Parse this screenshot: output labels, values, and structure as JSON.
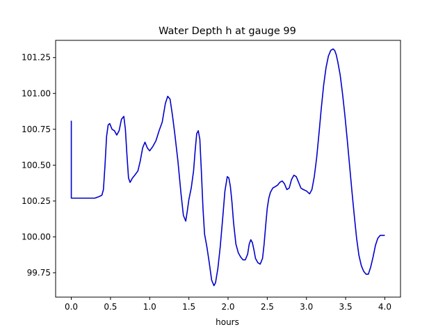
{
  "chart_data": {
    "type": "line",
    "title": "Water Depth h at gauge 99",
    "xlabel": "hours",
    "ylabel": "",
    "xlim": [
      -0.2,
      4.2
    ],
    "ylim": [
      99.58,
      101.37
    ],
    "xticks": [
      0.0,
      0.5,
      1.0,
      1.5,
      2.0,
      2.5,
      3.0,
      3.5,
      4.0
    ],
    "xtick_labels": [
      "0.0",
      "0.5",
      "1.0",
      "1.5",
      "2.0",
      "2.5",
      "3.0",
      "3.5",
      "4.0"
    ],
    "yticks": [
      99.75,
      100.0,
      100.25,
      100.5,
      100.75,
      101.0,
      101.25
    ],
    "ytick_labels": [
      "99.75",
      "100.00",
      "100.25",
      "100.50",
      "100.75",
      "101.00",
      "101.25"
    ],
    "grid": false,
    "series": [
      {
        "color": "#0000cc",
        "x": [
          0.0,
          0.0,
          0.01,
          0.1,
          0.2,
          0.3,
          0.35,
          0.39,
          0.41,
          0.43,
          0.45,
          0.47,
          0.49,
          0.52,
          0.55,
          0.58,
          0.61,
          0.64,
          0.67,
          0.69,
          0.71,
          0.73,
          0.75,
          0.78,
          0.81,
          0.85,
          0.88,
          0.91,
          0.94,
          0.97,
          1.0,
          1.04,
          1.08,
          1.12,
          1.16,
          1.2,
          1.23,
          1.26,
          1.29,
          1.32,
          1.36,
          1.4,
          1.43,
          1.46,
          1.48,
          1.5,
          1.53,
          1.56,
          1.58,
          1.6,
          1.62,
          1.64,
          1.66,
          1.68,
          1.7,
          1.73,
          1.76,
          1.79,
          1.82,
          1.84,
          1.87,
          1.9,
          1.93,
          1.96,
          1.99,
          2.01,
          2.03,
          2.05,
          2.07,
          2.1,
          2.13,
          2.16,
          2.19,
          2.22,
          2.25,
          2.27,
          2.29,
          2.31,
          2.33,
          2.35,
          2.38,
          2.41,
          2.44,
          2.46,
          2.48,
          2.5,
          2.52,
          2.54,
          2.57,
          2.6,
          2.63,
          2.66,
          2.69,
          2.72,
          2.75,
          2.78,
          2.81,
          2.84,
          2.87,
          2.9,
          2.93,
          2.96,
          3.0,
          3.04,
          3.07,
          3.1,
          3.13,
          3.16,
          3.19,
          3.22,
          3.25,
          3.28,
          3.31,
          3.34,
          3.36,
          3.38,
          3.4,
          3.43,
          3.46,
          3.49,
          3.52,
          3.55,
          3.58,
          3.61,
          3.64,
          3.67,
          3.7,
          3.73,
          3.76,
          3.79,
          3.82,
          3.85,
          3.88,
          3.91,
          3.94,
          3.97,
          4.0
        ],
        "y": [
          100.81,
          100.27,
          100.27,
          100.27,
          100.27,
          100.27,
          100.28,
          100.29,
          100.33,
          100.5,
          100.7,
          100.78,
          100.79,
          100.75,
          100.74,
          100.71,
          100.74,
          100.82,
          100.84,
          100.75,
          100.57,
          100.41,
          100.38,
          100.41,
          100.43,
          100.46,
          100.53,
          100.62,
          100.66,
          100.62,
          100.6,
          100.63,
          100.67,
          100.74,
          100.8,
          100.93,
          100.98,
          100.96,
          100.85,
          100.72,
          100.53,
          100.3,
          100.15,
          100.11,
          100.18,
          100.26,
          100.34,
          100.46,
          100.6,
          100.72,
          100.74,
          100.68,
          100.45,
          100.2,
          100.02,
          99.93,
          99.82,
          99.7,
          99.66,
          99.68,
          99.78,
          99.93,
          100.12,
          100.32,
          100.42,
          100.41,
          100.35,
          100.24,
          100.1,
          99.95,
          99.89,
          99.86,
          99.84,
          99.84,
          99.88,
          99.95,
          99.98,
          99.96,
          99.91,
          99.85,
          99.82,
          99.81,
          99.85,
          99.95,
          100.08,
          100.2,
          100.27,
          100.31,
          100.34,
          100.35,
          100.36,
          100.38,
          100.39,
          100.37,
          100.33,
          100.34,
          100.4,
          100.43,
          100.42,
          100.38,
          100.34,
          100.33,
          100.32,
          100.3,
          100.33,
          100.42,
          100.55,
          100.72,
          100.9,
          101.06,
          101.18,
          101.26,
          101.3,
          101.31,
          101.3,
          101.27,
          101.22,
          101.13,
          101.0,
          100.85,
          100.68,
          100.5,
          100.32,
          100.15,
          99.99,
          99.87,
          99.8,
          99.76,
          99.74,
          99.74,
          99.79,
          99.86,
          99.94,
          99.99,
          100.01,
          100.01,
          100.01
        ]
      }
    ]
  }
}
